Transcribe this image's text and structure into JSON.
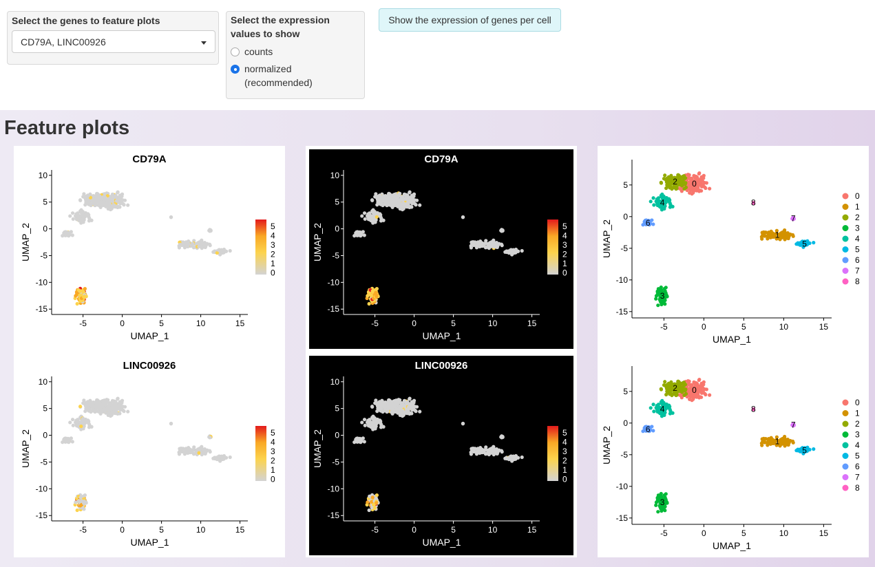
{
  "controls": {
    "genes": {
      "label": "Select the genes to feature plots",
      "value": "CD79A, LINC00926"
    },
    "expression": {
      "label_line1": "Select the expression",
      "label_line2": "values to show",
      "options": [
        {
          "label": "counts",
          "checked": false
        },
        {
          "label_line1": "normalized",
          "label_line2": "(recommended)",
          "checked": true
        }
      ]
    },
    "show_button": "Show the expression of genes per cell"
  },
  "section_title": "Feature plots",
  "colors": {
    "accent_radio": "#1a73e8",
    "button_bg": "#dff6f9",
    "expr_low": "#d3d3d3",
    "expr_high": "#e31a1c"
  },
  "icons": [
    "chevron-down-icon",
    "radio-selected-icon",
    "radio-empty-icon"
  ],
  "feature_plots": [
    {
      "title": "CD79A",
      "xlabel": "UMAP_1",
      "ylabel": "UMAP_2",
      "xticks": [
        "-5",
        "0",
        "5",
        "10",
        "15"
      ],
      "yticks": [
        "10",
        "5",
        "0",
        "-5",
        "-10",
        "-15"
      ],
      "legend": [
        "5",
        "4",
        "3",
        "2",
        "1",
        "0"
      ],
      "theme": "light"
    },
    {
      "title": "LINC00926",
      "xlabel": "UMAP_1",
      "ylabel": "UMAP_2",
      "xticks": [
        "-5",
        "0",
        "5",
        "10",
        "15"
      ],
      "yticks": [
        "10",
        "5",
        "0",
        "-5",
        "-10",
        "-15"
      ],
      "legend": [
        "5",
        "4",
        "3",
        "2",
        "1",
        "0"
      ],
      "theme": "light"
    },
    {
      "title": "CD79A",
      "xlabel": "UMAP_1",
      "ylabel": "UMAP_2",
      "xticks": [
        "-5",
        "0",
        "5",
        "10",
        "15"
      ],
      "yticks": [
        "10",
        "5",
        "0",
        "-5",
        "-10",
        "-15"
      ],
      "legend": [
        "5",
        "4",
        "3",
        "2",
        "1",
        "0"
      ],
      "theme": "dark"
    },
    {
      "title": "LINC00926",
      "xlabel": "UMAP_1",
      "ylabel": "UMAP_2",
      "xticks": [
        "-5",
        "0",
        "5",
        "10",
        "15"
      ],
      "yticks": [
        "10",
        "5",
        "0",
        "-5",
        "-10",
        "-15"
      ],
      "legend": [
        "5",
        "4",
        "3",
        "2",
        "1",
        "0"
      ],
      "theme": "dark"
    }
  ],
  "cluster_plots": [
    {
      "xlabel": "UMAP_1",
      "ylabel": "UMAP_2",
      "xticks": [
        "-5",
        "0",
        "5",
        "10",
        "15"
      ],
      "yticks": [
        "5",
        "0",
        "-5",
        "-10",
        "-15"
      ]
    },
    {
      "xlabel": "UMAP_1",
      "ylabel": "UMAP_2",
      "xticks": [
        "-5",
        "0",
        "5",
        "10",
        "15"
      ],
      "yticks": [
        "5",
        "0",
        "-5",
        "-10",
        "-15"
      ]
    }
  ],
  "clusters": [
    {
      "id": "0",
      "color": "#F8766D"
    },
    {
      "id": "1",
      "color": "#D39200"
    },
    {
      "id": "2",
      "color": "#93AA00"
    },
    {
      "id": "3",
      "color": "#00BA38"
    },
    {
      "id": "4",
      "color": "#00C19F"
    },
    {
      "id": "5",
      "color": "#00B9E3"
    },
    {
      "id": "6",
      "color": "#619CFF"
    },
    {
      "id": "7",
      "color": "#DB72FB"
    },
    {
      "id": "8",
      "color": "#FF61C3"
    }
  ]
}
